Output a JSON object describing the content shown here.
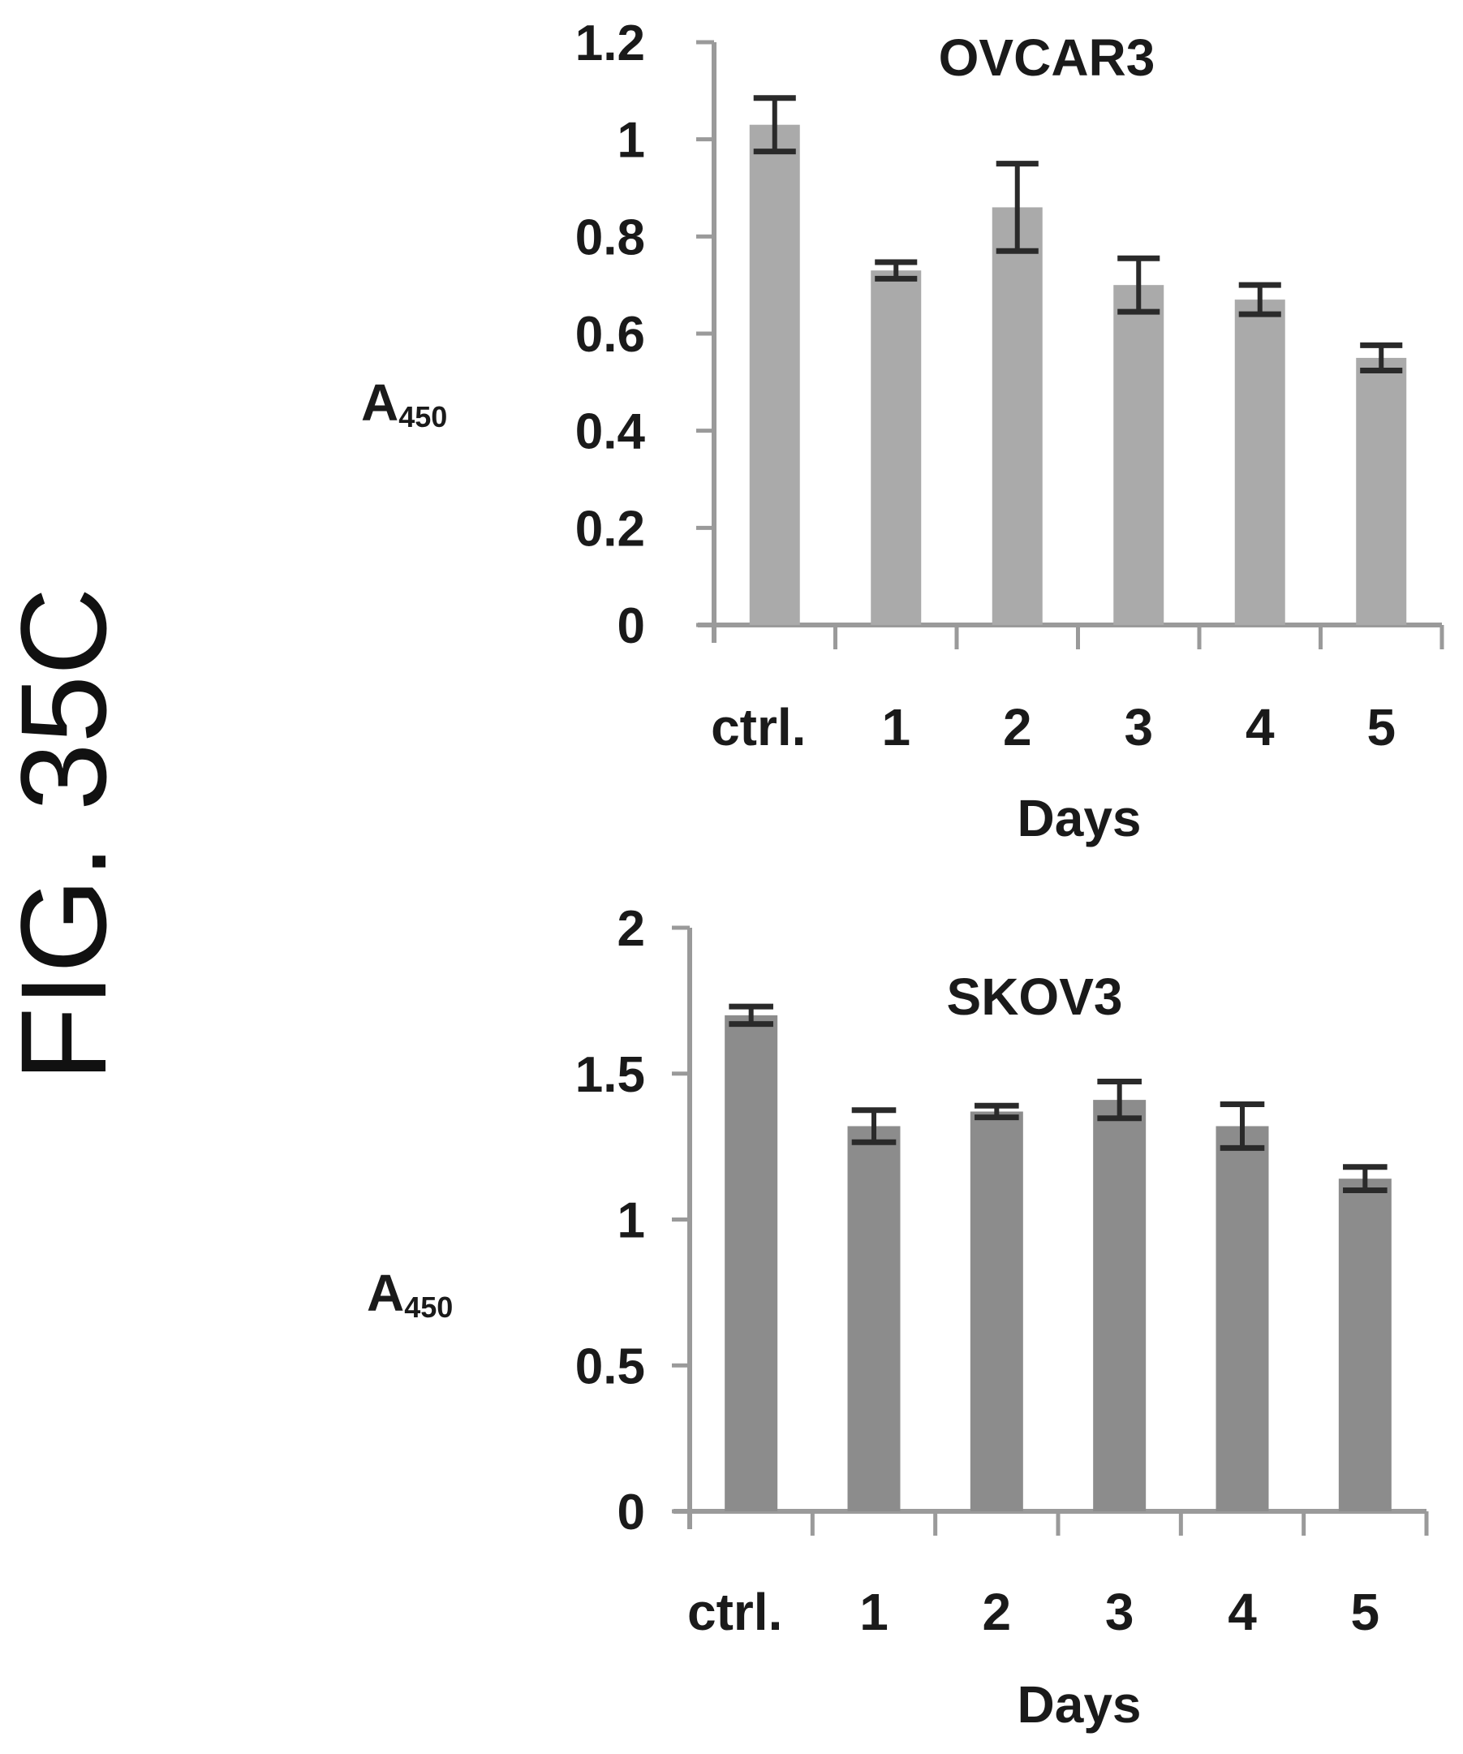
{
  "figure_label": "FIG. 35C",
  "chart_data": [
    {
      "type": "bar",
      "title": "OVCAR3",
      "xlabel": "Days",
      "ylabel": "A450",
      "ylabel_main": "A",
      "ylabel_sub": "450",
      "categories": [
        "ctrl.",
        "1",
        "2",
        "3",
        "4",
        "5"
      ],
      "values": [
        1.03,
        0.73,
        0.86,
        0.7,
        0.67,
        0.55
      ],
      "errors": [
        0.055,
        0.017,
        0.09,
        0.055,
        0.03,
        0.026
      ],
      "ylim": [
        0,
        1.2
      ],
      "yticks": [
        0,
        0.2,
        0.4,
        0.6,
        0.8,
        1,
        1.2
      ],
      "ytick_labels": [
        "0",
        "0.2",
        "0.4",
        "0.6",
        "0.8",
        "1",
        "1.2"
      ],
      "bar_color": "#aaaaaa",
      "grid": false,
      "legend": "none"
    },
    {
      "type": "bar",
      "title": "SKOV3",
      "xlabel": "Days",
      "ylabel": "A450",
      "ylabel_main": "A",
      "ylabel_sub": "450",
      "categories": [
        "ctrl.",
        "1",
        "2",
        "3",
        "4",
        "5"
      ],
      "values": [
        1.7,
        1.32,
        1.37,
        1.41,
        1.32,
        1.14
      ],
      "errors": [
        0.03,
        0.055,
        0.02,
        0.063,
        0.075,
        0.04
      ],
      "ylim": [
        0,
        2
      ],
      "yticks": [
        0,
        0.5,
        1,
        1.5,
        2
      ],
      "ytick_labels": [
        "0",
        "0.5",
        "1",
        "1.5",
        "2"
      ],
      "bar_color": "#8c8c8c",
      "grid": false,
      "legend": "none"
    }
  ]
}
